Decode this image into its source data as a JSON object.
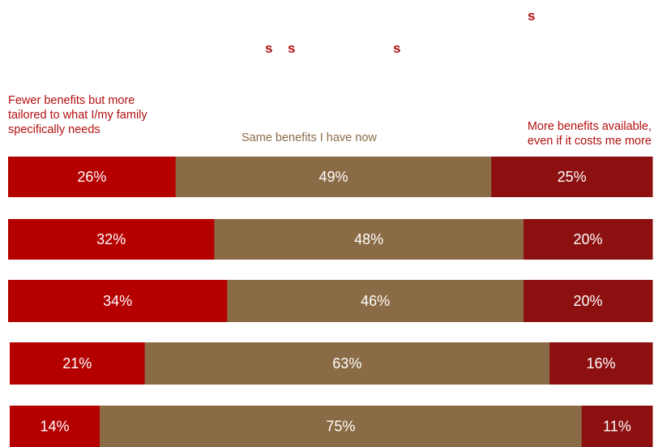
{
  "heading_fragments": [
    "s",
    "s",
    "s",
    "s"
  ],
  "legend": {
    "left_lines": [
      "Fewer benefits but more",
      "tailored to what I/my family",
      "specifically needs"
    ],
    "middle": "Same benefits I have now",
    "right_lines": [
      "More benefits available,",
      "even if it costs me more"
    ]
  },
  "colors": {
    "fewer": "#b50000",
    "same": "#8b6b45",
    "more": "#8c1010",
    "legend_red": "#b20f0f",
    "legend_brown": "#8c6a48"
  },
  "chart_data": {
    "type": "bar",
    "orientation": "horizontal",
    "stacked": true,
    "percent_scale": true,
    "categories": [
      "",
      "",
      "",
      "",
      ""
    ],
    "series": [
      {
        "name": "Fewer benefits but more tailored to what I/my family specifically needs",
        "values": [
          26,
          32,
          34,
          21,
          14
        ]
      },
      {
        "name": "Same benefits I have now",
        "values": [
          49,
          48,
          46,
          63,
          75
        ]
      },
      {
        "name": "More benefits available, even if it costs me more",
        "values": [
          25,
          20,
          20,
          16,
          11
        ]
      }
    ],
    "data_labels": [
      [
        "26%",
        "32%",
        "34%",
        "21%",
        "14%"
      ],
      [
        "49%",
        "48%",
        "46%",
        "63%",
        "75%"
      ],
      [
        "25%",
        "20%",
        "20%",
        "16%",
        "11%"
      ]
    ],
    "legend_position": "top",
    "grid": false
  }
}
